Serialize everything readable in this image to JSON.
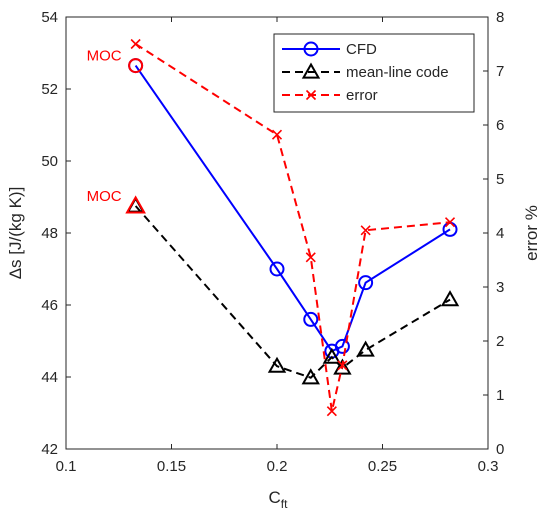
{
  "chart_data": {
    "type": "line",
    "xlabel": "C",
    "xlabel_sub": "ft",
    "ylabel": "Δs [J/(kg K)]",
    "y2label": "error %",
    "xlim": [
      0.1,
      0.3
    ],
    "ylim": [
      42,
      54
    ],
    "y2lim": [
      0,
      8
    ],
    "xticks": [
      "0.1",
      "0.15",
      "0.2",
      "0.25",
      "0.3"
    ],
    "yticks": [
      "42",
      "44",
      "46",
      "48",
      "50",
      "52",
      "54"
    ],
    "y2ticks": [
      "0",
      "1",
      "2",
      "3",
      "4",
      "5",
      "6",
      "7",
      "8"
    ],
    "grid": false,
    "legend_position": "top-right",
    "series": [
      {
        "name": "CFD",
        "axis": "left",
        "color": "#0000ff",
        "marker": "circle",
        "line": "solid",
        "x": [
          0.133,
          0.2,
          0.216,
          0.226,
          0.231,
          0.242,
          0.282
        ],
        "y": [
          52.65,
          47.0,
          45.6,
          44.72,
          44.85,
          46.62,
          48.1
        ]
      },
      {
        "name": "mean-line code",
        "axis": "left",
        "color": "#000000",
        "marker": "triangle",
        "line": "dashed",
        "x": [
          0.133,
          0.2,
          0.216,
          0.226,
          0.231,
          0.242,
          0.282
        ],
        "y": [
          48.75,
          44.3,
          43.98,
          44.55,
          44.25,
          44.75,
          46.15
        ]
      },
      {
        "name": "error",
        "axis": "right",
        "color": "#ff0000",
        "marker": "x",
        "line": "dashed",
        "x": [
          0.133,
          0.2,
          0.216,
          0.226,
          0.231,
          0.242,
          0.282
        ],
        "y": [
          7.5,
          5.82,
          3.55,
          0.7,
          1.55,
          4.05,
          4.2
        ]
      }
    ],
    "annotations": [
      {
        "text": "MOC",
        "x": 0.133,
        "y": 52.65,
        "axis": "left",
        "color": "#ff0000",
        "marker": "circle"
      },
      {
        "text": "MOC",
        "x": 0.133,
        "y": 48.75,
        "axis": "left",
        "color": "#ff0000",
        "marker": "triangle"
      }
    ]
  }
}
